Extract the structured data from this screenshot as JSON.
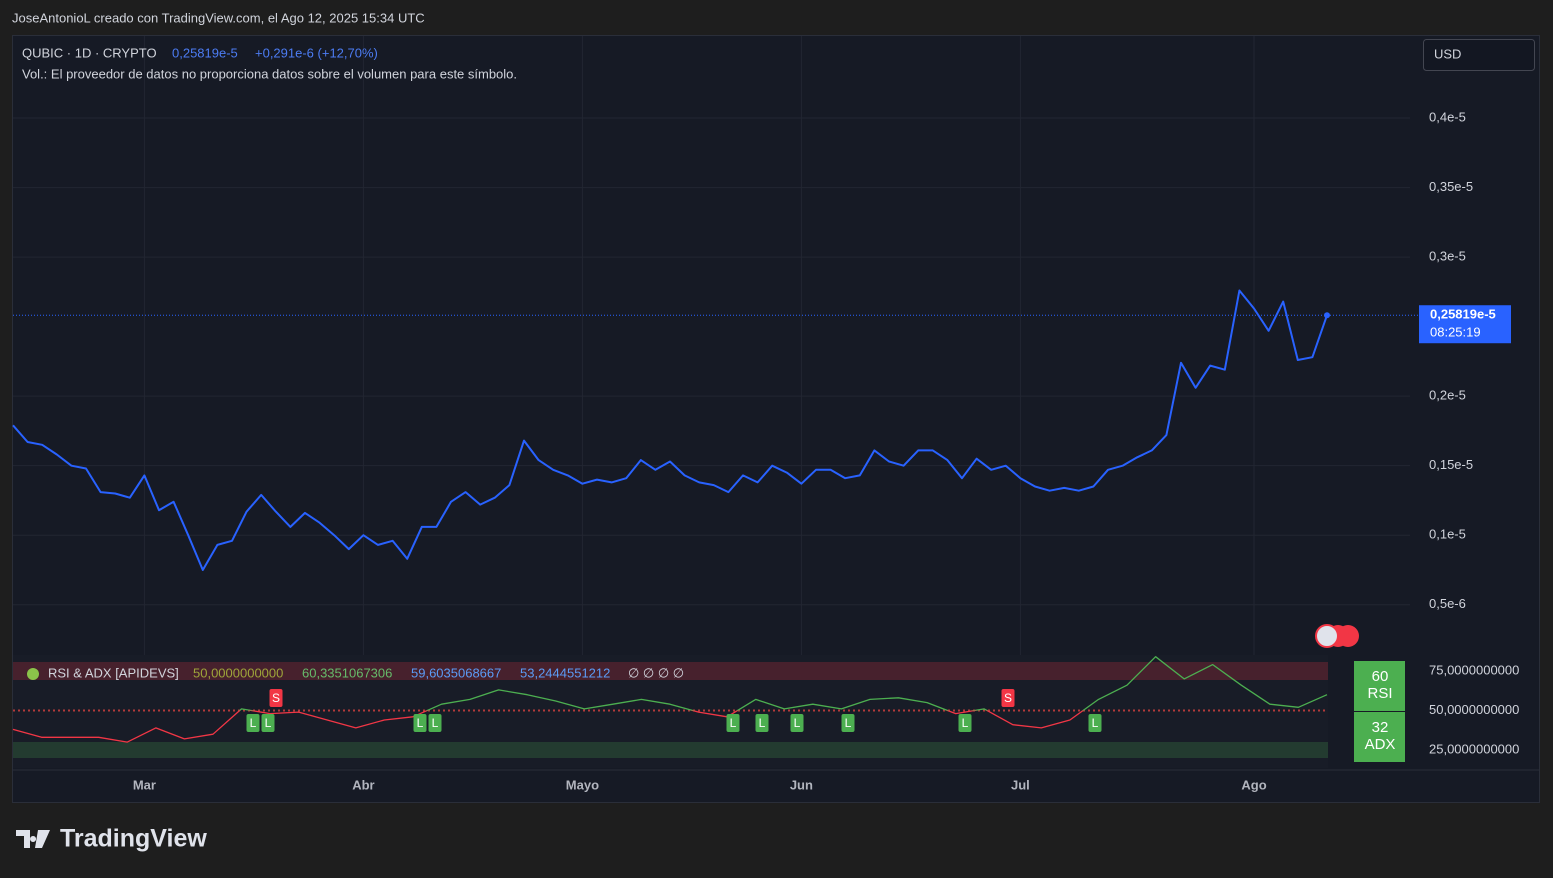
{
  "header": {
    "author_line": "JoseAntonioL creado con TradingView.com, el Ago 12, 2025 15:34 UTC"
  },
  "chart_data": [
    {
      "type": "line",
      "symbol": "QUBIC · 1D · CRYPTO",
      "last": "0,25819e-5",
      "change": "+0,291e-6 (+12,70%)",
      "volume_note": "Vol.: El proveedor de datos no proporciona datos sobre el volumen para este símbolo.",
      "currency": "USD",
      "countdown": "08:25:19",
      "color": "#2962ff",
      "grid": true,
      "categories": [
        null,
        null,
        null,
        null,
        null,
        null,
        null,
        null,
        null,
        "Mar",
        null,
        null,
        null,
        null,
        null,
        null,
        null,
        null,
        null,
        null,
        null,
        null,
        null,
        null,
        "Abr",
        null,
        null,
        null,
        null,
        null,
        null,
        null,
        null,
        null,
        null,
        null,
        null,
        null,
        null,
        "Mayo",
        null,
        null,
        null,
        null,
        null,
        null,
        null,
        null,
        null,
        null,
        null,
        null,
        null,
        null,
        "Jun",
        null,
        null,
        null,
        null,
        null,
        null,
        null,
        null,
        null,
        null,
        null,
        null,
        null,
        null,
        "Jul",
        null,
        null,
        null,
        null,
        null,
        null,
        null,
        null,
        null,
        null,
        null,
        null,
        null,
        null,
        null,
        "Ago",
        null,
        null,
        null,
        null,
        null
      ],
      "values": [
        1.79e-06,
        1.67e-06,
        1.65e-06,
        1.58e-06,
        1.5e-06,
        1.48e-06,
        1.31e-06,
        1.3e-06,
        1.27e-06,
        1.43e-06,
        1.18e-06,
        1.24e-06,
        1e-06,
        7.5e-07,
        9.3e-07,
        9.6e-07,
        1.17e-06,
        1.29e-06,
        1.17e-06,
        1.06e-06,
        1.16e-06,
        1.09e-06,
        1e-06,
        9e-07,
        1e-06,
        9.3e-07,
        9.6e-07,
        8.3e-07,
        1.06e-06,
        1.06e-06,
        1.24e-06,
        1.31e-06,
        1.22e-06,
        1.27e-06,
        1.36e-06,
        1.68e-06,
        1.54e-06,
        1.47e-06,
        1.43e-06,
        1.37e-06,
        1.4e-06,
        1.38e-06,
        1.41e-06,
        1.54e-06,
        1.47e-06,
        1.53e-06,
        1.43e-06,
        1.38e-06,
        1.36e-06,
        1.31e-06,
        1.43e-06,
        1.38e-06,
        1.5e-06,
        1.45e-06,
        1.37e-06,
        1.47e-06,
        1.47e-06,
        1.41e-06,
        1.43e-06,
        1.61e-06,
        1.53e-06,
        1.5e-06,
        1.61e-06,
        1.61e-06,
        1.54e-06,
        1.41e-06,
        1.55e-06,
        1.47e-06,
        1.5e-06,
        1.41e-06,
        1.35e-06,
        1.32e-06,
        1.34e-06,
        1.32e-06,
        1.35e-06,
        1.47e-06,
        1.5e-06,
        1.56e-06,
        1.61e-06,
        1.72e-06,
        2.24e-06,
        2.06e-06,
        2.22e-06,
        2.19e-06,
        2.76e-06,
        2.63e-06,
        2.47e-06,
        2.68e-06,
        2.26e-06,
        2.28e-06,
        2.5819e-06
      ],
      "ylim": [
        1.6e-07,
        4.59e-06
      ],
      "yticks": [
        {
          "value": 5e-07,
          "label": "0,5e-6"
        },
        {
          "value": 1e-06,
          "label": "0,1e-5"
        },
        {
          "value": 1.5e-06,
          "label": "0,15e-5"
        },
        {
          "value": 2e-06,
          "label": "0,2e-5"
        },
        {
          "value": 3e-06,
          "label": "0,3e-5"
        },
        {
          "value": 3.5e-06,
          "label": "0,35e-5"
        },
        {
          "value": 4e-06,
          "label": "0,4e-5"
        }
      ]
    },
    {
      "type": "line",
      "title": "RSI & ADX [APIDEVS]",
      "legend_values": [
        "50,0000000000",
        "60,3351067306",
        "59,6035068667",
        "53,2444551212"
      ],
      "na_values": "∅ ∅ ∅ ∅",
      "above_color": "#4caf50",
      "below_color": "#f23645",
      "values": [
        38,
        33,
        33,
        33,
        30,
        39,
        32,
        35,
        51,
        48,
        49,
        44,
        39,
        44,
        46,
        54,
        57,
        63,
        60,
        56,
        51,
        54,
        57,
        54,
        49,
        46,
        57,
        51,
        54,
        51,
        57,
        58,
        55,
        48,
        51,
        41,
        39,
        44,
        57,
        66,
        84,
        70,
        79,
        66,
        54,
        52,
        60
      ],
      "rsi_badge_label": "RSI",
      "adx_value": 32,
      "adx_badge_label": "ADX",
      "signals": [
        "L",
        "L",
        "S",
        "L",
        "L",
        "L",
        "L",
        "L",
        "L",
        "L",
        "S",
        "L"
      ],
      "ylim": [
        13.6,
        85.1
      ],
      "yticks": [
        {
          "value": 25,
          "label": "25,0000000000"
        },
        {
          "value": 50,
          "label": "50,0000000000"
        },
        {
          "value": 75,
          "label": "75,0000000000"
        }
      ]
    }
  ],
  "footer": {
    "logo": "TradingView"
  }
}
